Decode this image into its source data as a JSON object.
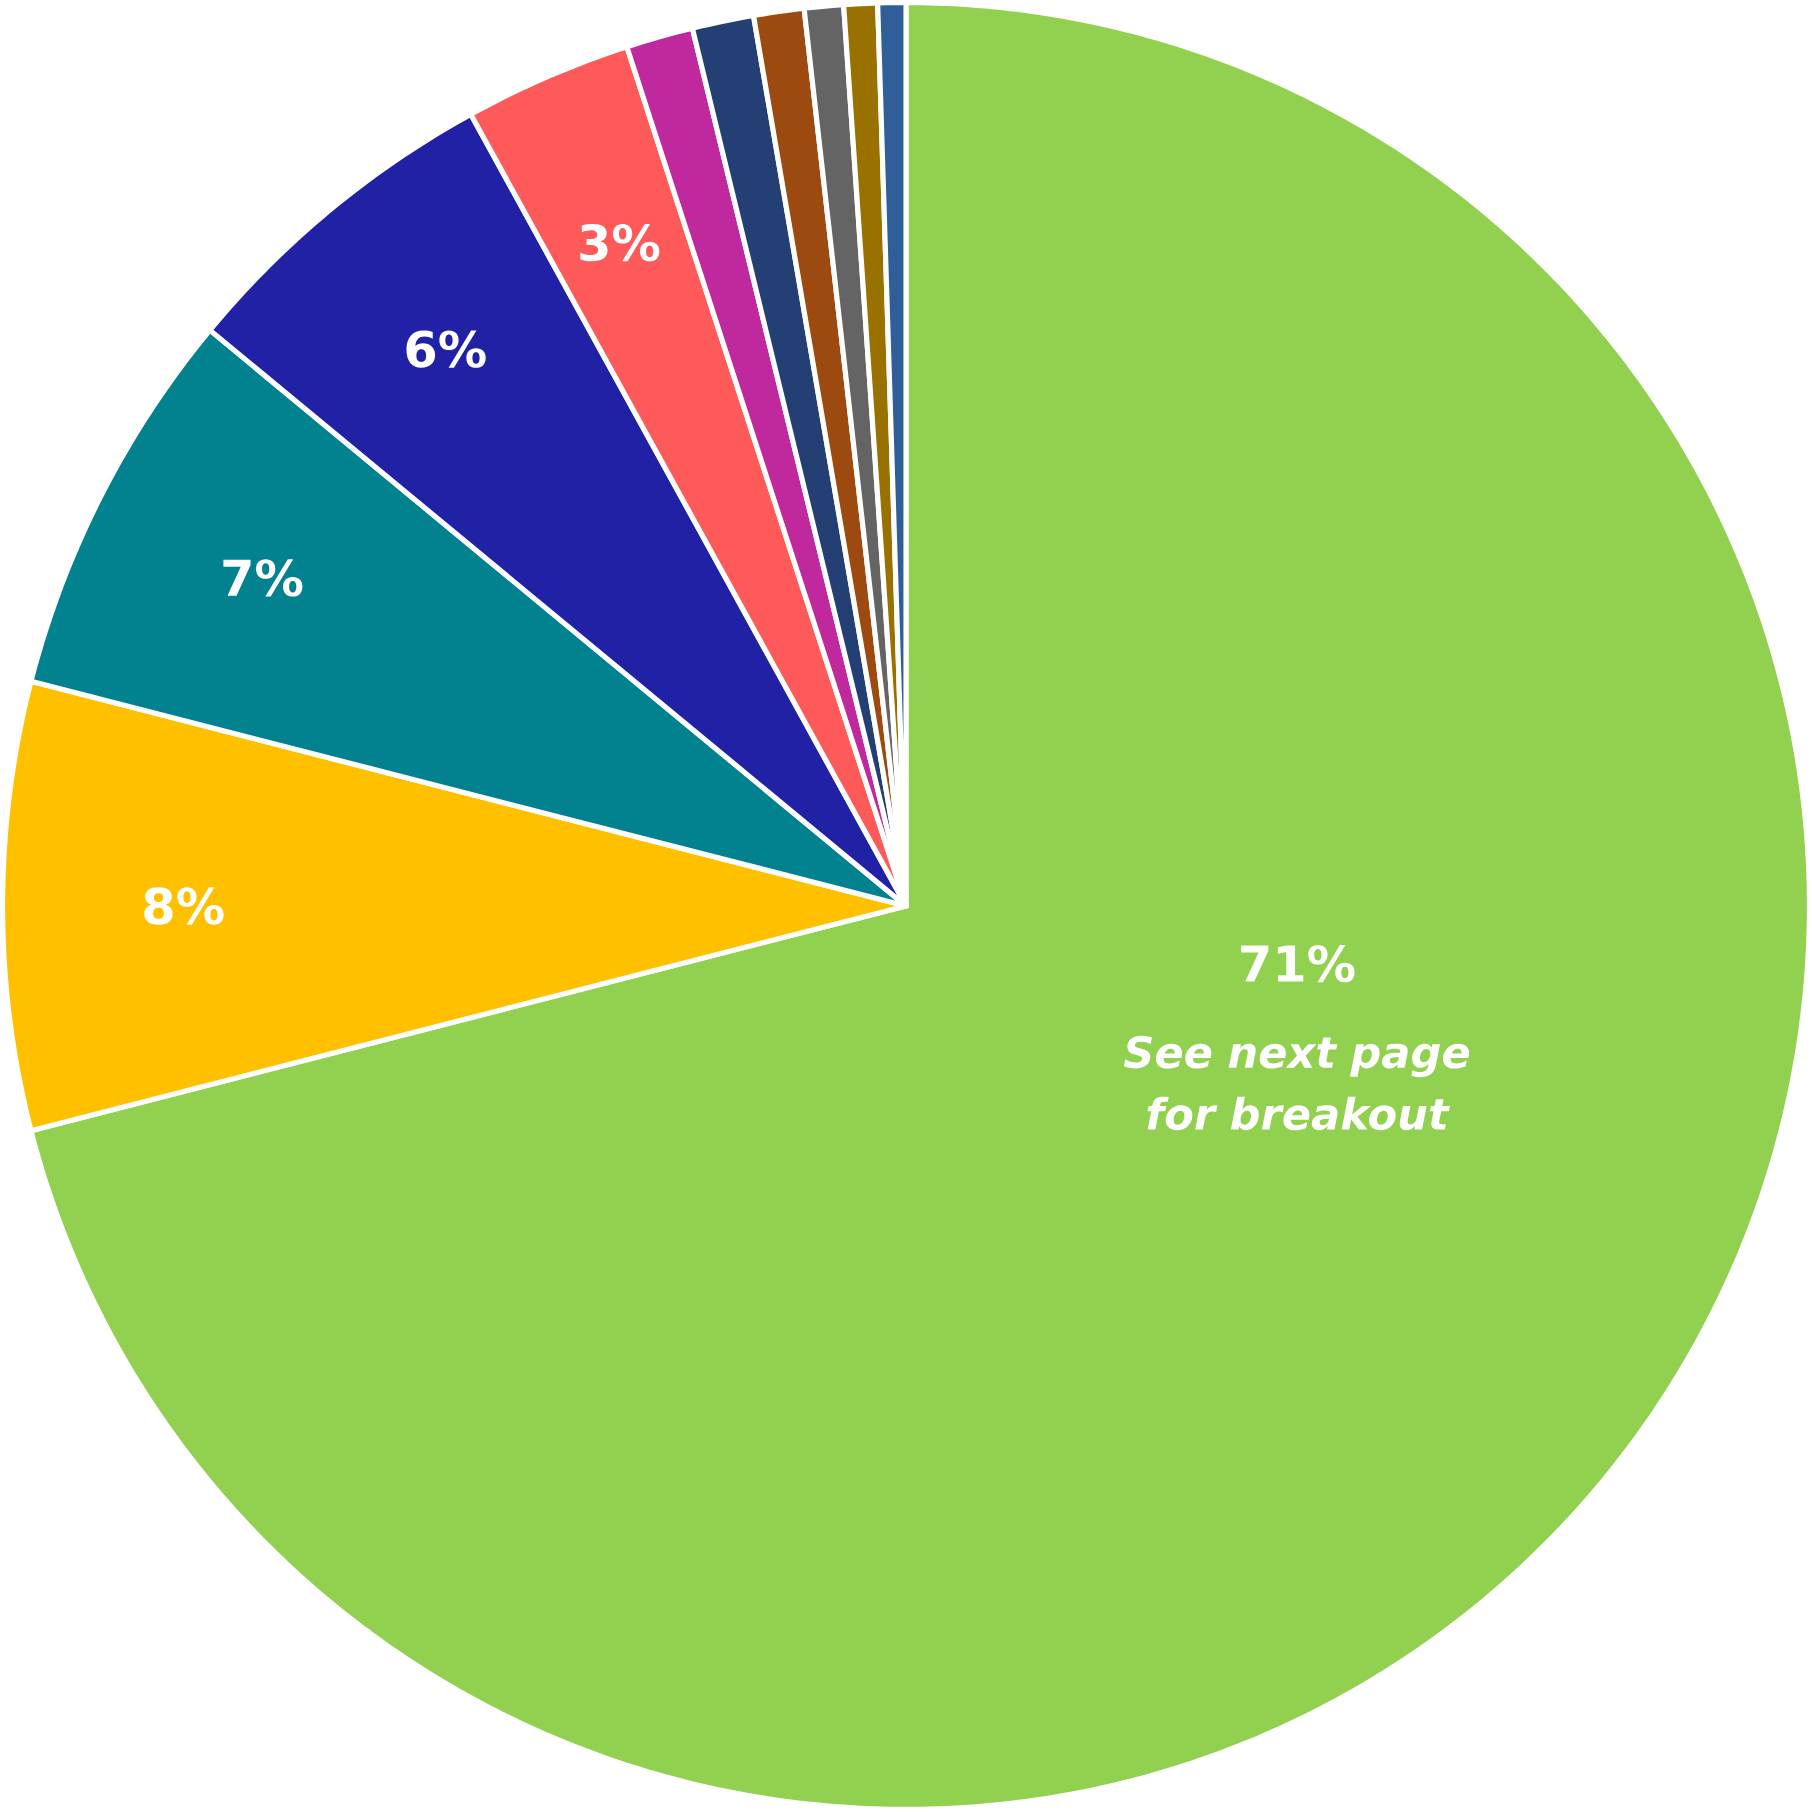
{
  "chart_data": {
    "type": "pie",
    "categories": [
      null,
      null,
      null,
      null,
      null,
      null,
      null,
      null,
      null,
      null,
      null
    ],
    "values": [
      71,
      8,
      7,
      6,
      3,
      1.2,
      1.1,
      0.9,
      0.7,
      0.6,
      0.5
    ],
    "colors": [
      "#92d050",
      "#ffc000",
      "#02828f",
      "#2121a6",
      "#ff5a5a",
      "#c0289e",
      "#243f73",
      "#9c4a10",
      "#646464",
      "#987100",
      "#2f5e99"
    ],
    "value_labels": [
      "71%",
      "8%",
      "7%",
      "6%",
      "3%",
      null,
      null,
      null,
      null,
      null,
      null
    ],
    "annotations": [
      "See next page for breakout"
    ]
  }
}
